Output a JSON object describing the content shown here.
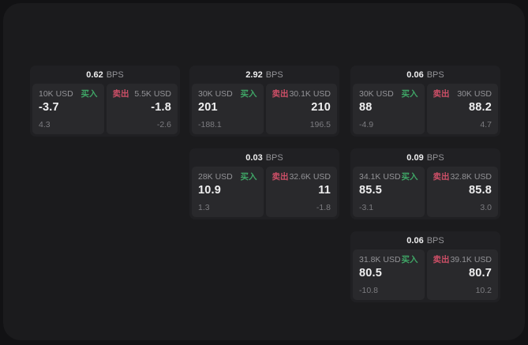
{
  "labels": {
    "bps_unit": "BPS",
    "buy": "买入",
    "sell": "卖出"
  },
  "colors": {
    "page_bg": "#121214",
    "panel_bg": "#1b1b1d",
    "card_bg": "#202023",
    "tile_bg": "#29292c",
    "buy_green": "#3fa566",
    "sell_red": "#cd4f67",
    "text_primary": "#efeff0",
    "text_muted": "#939397",
    "text_dim": "#7c7c80"
  },
  "cards": [
    {
      "row": 1,
      "col": 1,
      "bps": "0.62",
      "buy": {
        "size": "10K USD",
        "price": "-3.7",
        "delta": "4.3"
      },
      "sell": {
        "size": "5.5K USD",
        "price": "-1.8",
        "delta": "-2.6"
      }
    },
    {
      "row": 1,
      "col": 2,
      "bps": "2.92",
      "buy": {
        "size": "30K USD",
        "price": "201",
        "delta": "-188.1"
      },
      "sell": {
        "size": "30.1K USD",
        "price": "210",
        "delta": "196.5"
      }
    },
    {
      "row": 1,
      "col": 3,
      "bps": "0.06",
      "buy": {
        "size": "30K USD",
        "price": "88",
        "delta": "-4.9"
      },
      "sell": {
        "size": "30K USD",
        "price": "88.2",
        "delta": "4.7"
      }
    },
    {
      "row": 2,
      "col": 2,
      "bps": "0.03",
      "buy": {
        "size": "28K USD",
        "price": "10.9",
        "delta": "1.3"
      },
      "sell": {
        "size": "32.6K USD",
        "price": "11",
        "delta": "-1.8"
      }
    },
    {
      "row": 2,
      "col": 3,
      "bps": "0.09",
      "buy": {
        "size": "34.1K USD",
        "price": "85.5",
        "delta": "-3.1"
      },
      "sell": {
        "size": "32.8K USD",
        "price": "85.8",
        "delta": "3.0"
      }
    },
    {
      "row": 3,
      "col": 3,
      "bps": "0.06",
      "buy": {
        "size": "31.8K USD",
        "price": "80.5",
        "delta": "-10.8"
      },
      "sell": {
        "size": "39.1K USD",
        "price": "80.7",
        "delta": "10.2"
      }
    }
  ]
}
